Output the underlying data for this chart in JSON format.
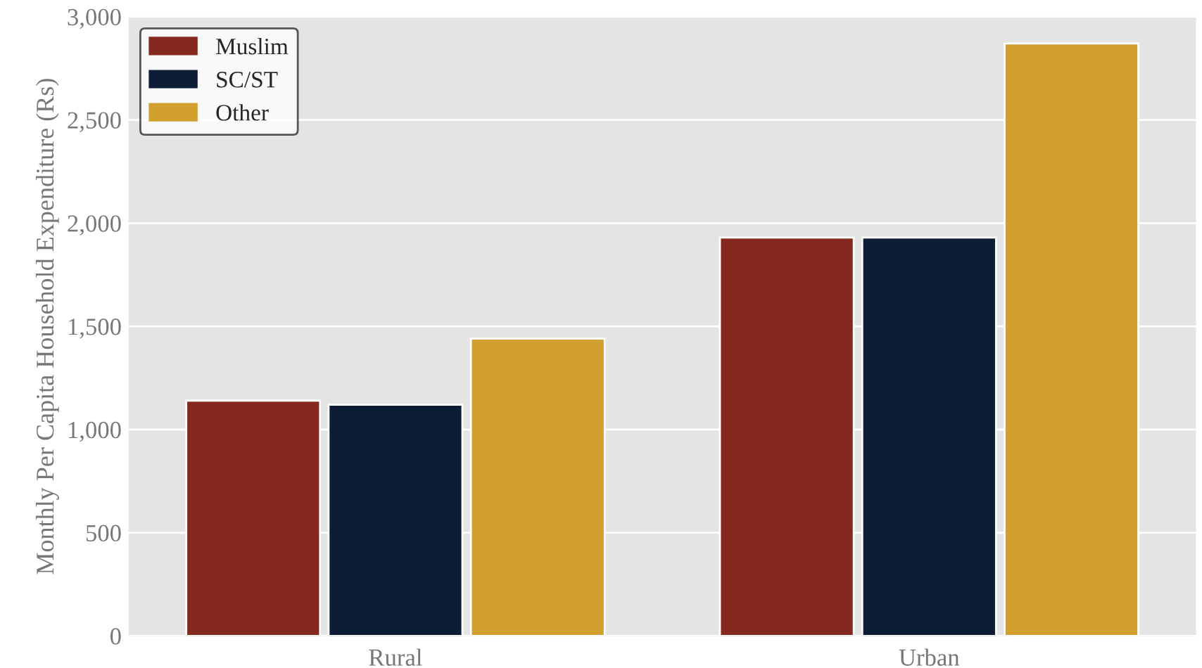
{
  "chart_data": {
    "type": "bar",
    "ylabel": "Monthly Per Capita Household Expenditure (Rs)",
    "categories": [
      "Rural",
      "Urban"
    ],
    "series": [
      {
        "name": "Muslim",
        "color": "#85281f",
        "values": [
          1140,
          1930
        ]
      },
      {
        "name": "SC/ST",
        "color": "#0e1d36",
        "values": [
          1120,
          1930
        ]
      },
      {
        "name": "Other",
        "color": "#d2a02f",
        "values": [
          1440,
          2870
        ]
      }
    ],
    "ylim": [
      0,
      3000
    ],
    "yticks": [
      {
        "value": 0,
        "label": "0"
      },
      {
        "value": 500,
        "label": "500"
      },
      {
        "value": 1000,
        "label": "1,000"
      },
      {
        "value": 1500,
        "label": "1,500"
      },
      {
        "value": 2000,
        "label": "2,000"
      },
      {
        "value": 2500,
        "label": "2,500"
      },
      {
        "value": 3000,
        "label": "3,000"
      }
    ],
    "grid": "y",
    "legend": "top left"
  }
}
